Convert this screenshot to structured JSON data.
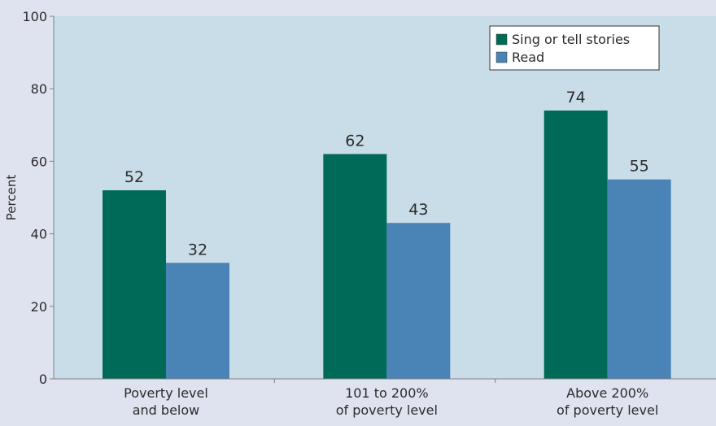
{
  "chart_data": {
    "type": "bar",
    "title": "",
    "xlabel": "",
    "ylabel": "Percent",
    "ylim": [
      0,
      100
    ],
    "yticks": [
      0,
      20,
      40,
      60,
      80,
      100
    ],
    "grid": false,
    "legend_position": "top-right",
    "categories": [
      [
        "Poverty level",
        "and below"
      ],
      [
        "101 to 200%",
        "of poverty level"
      ],
      [
        "Above 200%",
        "of poverty level"
      ]
    ],
    "series": [
      {
        "name": "Sing or tell stories",
        "values": [
          52,
          62,
          74
        ],
        "color": "#006a58"
      },
      {
        "name": "Read",
        "values": [
          32,
          43,
          55
        ],
        "color": "#4a84b7"
      }
    ],
    "colors": {
      "page_background": "#dfe3ef",
      "plot_background": "#c9dde8",
      "axis": "#7f7f7f"
    }
  }
}
